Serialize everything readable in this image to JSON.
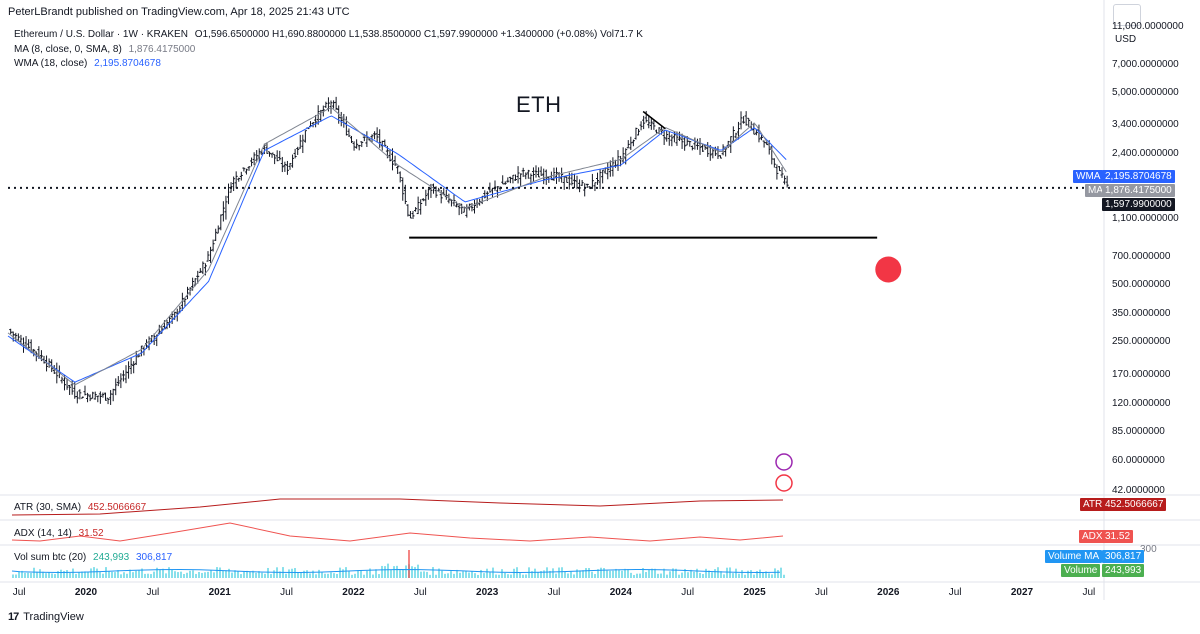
{
  "header": {
    "published": "PeterLBrandt published on TradingView.com, Apr 18, 2025 21:43 UTC"
  },
  "legend": {
    "symbol": "Ethereum / U.S. Dollar · 1W · KRAKEN",
    "ohlc": "O1,596.6500000  H1,690.8800000  L1,538.8500000  C1,597.9900000  +1.3400000 (+0.08%)  Vol71.7 K",
    "ma_label": "MA (8, close, 0, SMA, 8)",
    "ma_value": "1,876.4175000",
    "wma_label": "WMA (18, close)",
    "wma_value": "2,195.8704678",
    "atr_label": "ATR (30, SMA)",
    "atr_value": "452.5066667",
    "adx_label": "ADX (14, 14)",
    "adx_value": "31.52",
    "vol_label": "Vol sum btc (20)",
    "vol_value1": "243,993",
    "vol_value2": "306,817"
  },
  "annotation": {
    "text": "ETH"
  },
  "price_axis": {
    "currency": "USD",
    "labels": [
      "11,000.0000000",
      "7,000.0000000",
      "5,000.0000000",
      "3,400.0000000",
      "2,400.0000000",
      "1,100.0000000",
      "700.0000000",
      "500.0000000",
      "350.0000000",
      "250.0000000",
      "170.0000000",
      "120.0000000",
      "85.0000000",
      "60.0000000",
      "42.0000000"
    ]
  },
  "tags": {
    "wma": {
      "label": "WMA",
      "value": "2,195.8704678"
    },
    "ma": {
      "label": "MA",
      "value": "1,876.4175000"
    },
    "close": {
      "value": "1,597.9900000"
    },
    "atr": {
      "label": "ATR",
      "value": "452.5066667"
    },
    "adx": {
      "label": "ADX",
      "value": "31.52"
    },
    "volma": {
      "label": "Volume MA",
      "value": "306,817"
    },
    "volume": {
      "label": "Volume",
      "value": "243,993"
    },
    "vol_hidden": "300"
  },
  "time_axis": {
    "labels": [
      {
        "text": "Jul",
        "bold": false
      },
      {
        "text": "2020",
        "bold": true
      },
      {
        "text": "Jul",
        "bold": false
      },
      {
        "text": "2021",
        "bold": true
      },
      {
        "text": "Jul",
        "bold": false
      },
      {
        "text": "2022",
        "bold": true
      },
      {
        "text": "Jul",
        "bold": false
      },
      {
        "text": "2023",
        "bold": true
      },
      {
        "text": "Jul",
        "bold": false
      },
      {
        "text": "2024",
        "bold": true
      },
      {
        "text": "Jul",
        "bold": false
      },
      {
        "text": "2025",
        "bold": true
      },
      {
        "text": "Jul",
        "bold": false
      },
      {
        "text": "2026",
        "bold": true
      },
      {
        "text": "Jul",
        "bold": false
      },
      {
        "text": "2027",
        "bold": true
      },
      {
        "text": "Jul",
        "bold": false
      }
    ]
  },
  "footer": {
    "brand": "TradingView"
  },
  "colors": {
    "candle": "#131722",
    "wma": "#2962ff",
    "ma": "#7f8591",
    "atr": "#b71c1c",
    "adx": "#ef5350",
    "volume": "#26c6da",
    "volma": "#2196f3",
    "target": "#f23645"
  },
  "chart_data": {
    "type": "line",
    "title": "ETH",
    "scale": "log",
    "interval": "1W",
    "ylim": [
      40,
      12000
    ],
    "xlim": [
      "2019-06",
      "2027-08"
    ],
    "series": [
      {
        "name": "ETH/USD weekly close (approx.)",
        "x": [
          "2019-06",
          "2019-09",
          "2019-12",
          "2020-03",
          "2020-06",
          "2020-09",
          "2020-12",
          "2021-02",
          "2021-05",
          "2021-07",
          "2021-09",
          "2021-11",
          "2022-01",
          "2022-03",
          "2022-05",
          "2022-06",
          "2022-08",
          "2022-11",
          "2023-01",
          "2023-04",
          "2023-07",
          "2023-10",
          "2024-01",
          "2024-03",
          "2024-05",
          "2024-08",
          "2024-10",
          "2024-12",
          "2025-02",
          "2025-03",
          "2025-04"
        ],
        "values": [
          290,
          210,
          135,
          130,
          230,
          350,
          700,
          1700,
          2600,
          2000,
          3400,
          4500,
          2700,
          3000,
          2000,
          1100,
          1600,
          1200,
          1500,
          1900,
          1850,
          1600,
          2300,
          3600,
          3000,
          2600,
          2400,
          3700,
          2700,
          2000,
          1598
        ]
      },
      {
        "name": "WMA (18, close)",
        "x": [
          "2019-06",
          "2019-12",
          "2020-06",
          "2020-12",
          "2021-05",
          "2021-11",
          "2022-05",
          "2022-11",
          "2023-06",
          "2024-01",
          "2024-05",
          "2024-10",
          "2025-01",
          "2025-04"
        ],
        "values": [
          270,
          155,
          220,
          520,
          2500,
          3800,
          2400,
          1350,
          1750,
          2100,
          3200,
          2500,
          3300,
          2196
        ]
      },
      {
        "name": "MA (8, close, SMA)",
        "x": [
          "2019-06",
          "2019-12",
          "2020-06",
          "2020-12",
          "2021-05",
          "2021-11",
          "2022-05",
          "2022-11",
          "2023-06",
          "2024-01",
          "2024-05",
          "2024-10",
          "2025-01",
          "2025-04"
        ],
        "values": [
          280,
          150,
          230,
          600,
          2700,
          4200,
          2100,
          1250,
          1800,
          2250,
          3300,
          2450,
          3500,
          1876
        ]
      }
    ],
    "reference_lines": [
      {
        "name": "Last close",
        "value": 1597.99,
        "style": "dotted"
      },
      {
        "name": "Horizontal support",
        "value": 880,
        "from": "2022-06",
        "to": "2025-12"
      },
      {
        "name": "Trendline",
        "from_value": 4000,
        "to_value": 3250,
        "from": "2024-03",
        "to": "2024-05"
      }
    ],
    "annotations": [
      {
        "name": "Target marker",
        "value": 600,
        "x": "2026-01"
      }
    ],
    "indicators": {
      "atr_30_sma": {
        "last": 452.5066667
      },
      "adx_14_14": {
        "last": 31.52
      },
      "volume_btc": {
        "sum_20": 243993,
        "ma": 306817
      }
    }
  }
}
